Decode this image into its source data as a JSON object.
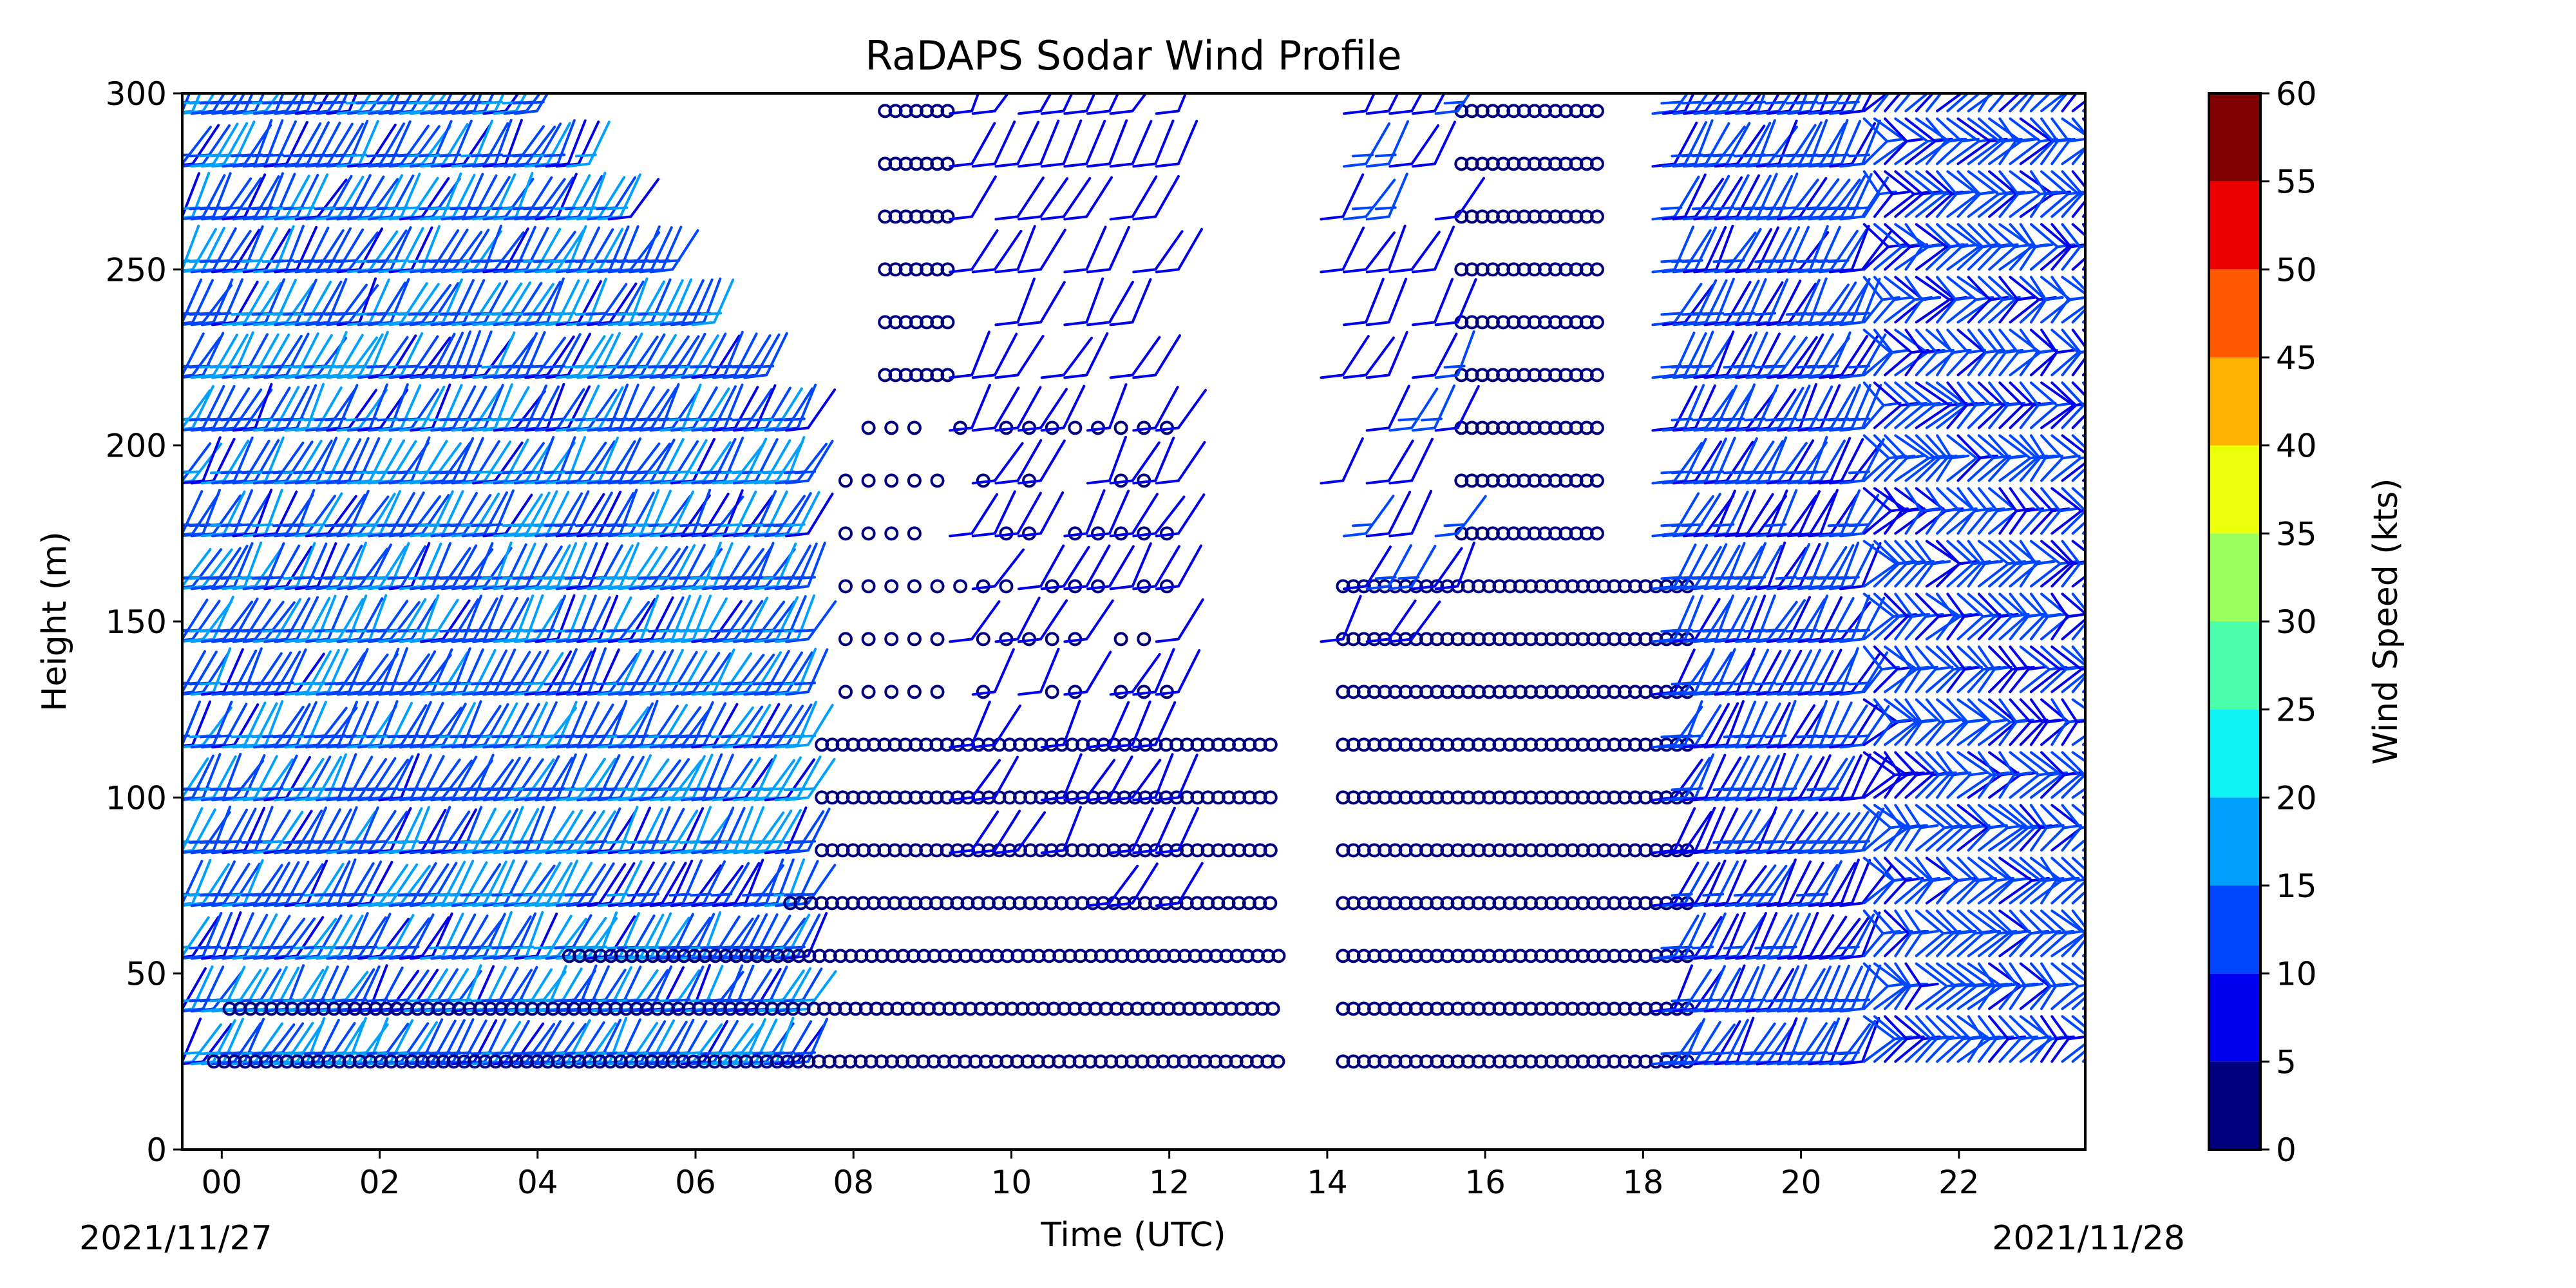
{
  "chart_data": {
    "type": "wind-barb-profile",
    "title": "RaDAPS Sodar Wind Profile",
    "xlabel": "Time (UTC)",
    "ylabel": "Height (m)",
    "date_start_label": "2021/11/27",
    "date_end_label": "2021/11/28",
    "xlim": [
      -0.5,
      23.6
    ],
    "ylim": [
      0,
      300
    ],
    "x_ticks": [
      "00",
      "02",
      "04",
      "06",
      "08",
      "10",
      "12",
      "14",
      "16",
      "18",
      "20",
      "22"
    ],
    "y_ticks": [
      0,
      50,
      100,
      150,
      200,
      250,
      300
    ],
    "heights_m": [
      25,
      40,
      55,
      70,
      85,
      100,
      115,
      130,
      145,
      160,
      175,
      190,
      205,
      220,
      235,
      250,
      265,
      280,
      295
    ],
    "colorbar": {
      "label": "Wind Speed (kts)",
      "ticks": [
        0,
        5,
        10,
        15,
        20,
        25,
        30,
        35,
        40,
        45,
        50,
        55,
        60
      ],
      "colors": [
        "#00007f",
        "#0000ed",
        "#0046ff",
        "#00a0ff",
        "#0ef4f4",
        "#4cffaa",
        "#98ff5e",
        "#ecff0b",
        "#ffb300",
        "#ff5900",
        "#ec0000",
        "#7f0000"
      ]
    },
    "calm_color": "#00007f",
    "profile_regions": [
      {
        "name": "morning barbs",
        "x": [
          -0.5,
          7.5
        ],
        "y": [
          15,
          300
        ],
        "top_at_end": 205,
        "speed_kts": [
          9,
          18
        ],
        "style": "barb"
      },
      {
        "name": "morning calm 25m",
        "x": [
          -0.1,
          13.4
        ],
        "y": [
          25,
          25
        ],
        "style": "calm"
      },
      {
        "name": "morning calm 40m",
        "x": [
          0.1,
          13.4
        ],
        "y": [
          40,
          40
        ],
        "style": "calm"
      },
      {
        "name": "morning calm 55m",
        "x": [
          4.4,
          13.4
        ],
        "y": [
          55,
          55
        ],
        "style": "calm"
      },
      {
        "name": "morning calm 70m",
        "x": [
          7.2,
          13.4
        ],
        "y": [
          70,
          70
        ],
        "style": "calm"
      },
      {
        "name": "calm 85m",
        "x": [
          7.6,
          13.3
        ],
        "y": [
          85,
          85
        ],
        "style": "calm"
      },
      {
        "name": "calm 100-115m",
        "x": [
          7.6,
          13.4
        ],
        "y": [
          100,
          115
        ],
        "style": "calm"
      },
      {
        "name": "late morning calms",
        "x": [
          7.9,
          12.0
        ],
        "y": [
          130,
          205
        ],
        "style": "calm-sparse"
      },
      {
        "name": "upper calms",
        "x": [
          8.4,
          9.2
        ],
        "y": [
          220,
          295
        ],
        "style": "calm"
      },
      {
        "name": "midday barbs",
        "x": [
          9.5,
          12.4
        ],
        "y": [
          75,
          295
        ],
        "speed_kts": [
          5,
          10
        ],
        "style": "barb-sparse"
      },
      {
        "name": "afternoon calm",
        "x": [
          14.2,
          18.6
        ],
        "y": [
          25,
          160
        ],
        "style": "calm"
      },
      {
        "name": "afternoon calm upper",
        "x": [
          15.7,
          17.5
        ],
        "y": [
          175,
          295
        ],
        "style": "calm"
      },
      {
        "name": "afternoon barbs",
        "x": [
          14.2,
          15.8
        ],
        "y": [
          140,
          300
        ],
        "speed_kts": [
          6,
          12
        ],
        "style": "barb-sparse"
      },
      {
        "name": "evening barbs",
        "x": [
          18.4,
          20.8
        ],
        "y": [
          25,
          300
        ],
        "speed_kts": [
          8,
          14
        ],
        "style": "barb"
      },
      {
        "name": "night barbs",
        "x": [
          20.8,
          23.6
        ],
        "y": [
          25,
          300
        ],
        "speed_kts": [
          8,
          15
        ],
        "style": "barb-chevron"
      }
    ]
  }
}
